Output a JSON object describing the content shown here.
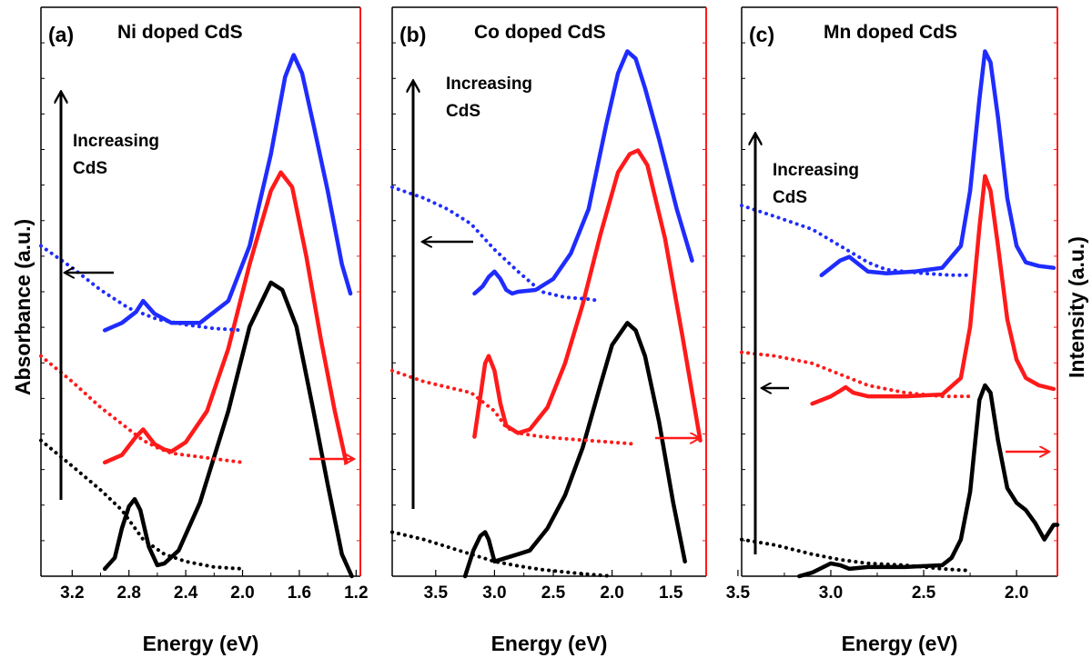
{
  "figure": {
    "ylabel_left": "Absorbance (a.u.)",
    "ylabel_right": "Intensity (a.u.)",
    "colors": {
      "blue": "#1f2cff",
      "red": "#ff1a1a",
      "black": "#000000"
    }
  },
  "chart_data": [
    {
      "type": "line",
      "panel_label": "(a)",
      "title": "Ni doped CdS",
      "xlabel": "Energy (eV)",
      "xlim": [
        3.42,
        1.17
      ],
      "xticks": [
        "3.2",
        "2.8",
        "2.4",
        "2.0",
        "1.6",
        "1.2"
      ],
      "annotation": [
        "Increasing",
        "CdS"
      ],
      "series": [
        {
          "color": "blue",
          "style": "solid",
          "x": [
            2.97,
            2.85,
            2.75,
            2.7,
            2.62,
            2.5,
            2.3,
            2.1,
            1.95,
            1.8,
            1.7,
            1.64,
            1.58,
            1.5,
            1.4,
            1.3,
            1.24
          ],
          "y": [
            6.7,
            6.9,
            7.2,
            7.5,
            7.15,
            6.9,
            6.9,
            7.5,
            9.0,
            11.5,
            13.6,
            14.2,
            13.7,
            12.3,
            10.5,
            8.5,
            7.7
          ]
        },
        {
          "color": "red",
          "style": "solid",
          "x": [
            2.97,
            2.85,
            2.75,
            2.7,
            2.62,
            2.55,
            2.5,
            2.4,
            2.25,
            2.1,
            1.95,
            1.8,
            1.73,
            1.65,
            1.55,
            1.45,
            1.35,
            1.27
          ],
          "y": [
            3.1,
            3.3,
            3.8,
            4.0,
            3.6,
            3.45,
            3.4,
            3.65,
            4.5,
            6.2,
            8.5,
            10.5,
            11.0,
            10.6,
            8.7,
            6.5,
            4.5,
            3.1
          ]
        },
        {
          "color": "black",
          "style": "solid",
          "x": [
            2.97,
            2.9,
            2.85,
            2.8,
            2.76,
            2.72,
            2.66,
            2.6,
            2.55,
            2.45,
            2.3,
            2.1,
            1.95,
            1.8,
            1.72,
            1.62,
            1.5,
            1.4,
            1.3,
            1.23
          ],
          "y": [
            0.2,
            0.5,
            1.3,
            1.9,
            2.1,
            1.8,
            0.8,
            0.3,
            0.35,
            0.7,
            2.0,
            4.5,
            6.8,
            8.0,
            7.8,
            6.8,
            4.5,
            2.5,
            0.6,
            0.0
          ]
        },
        {
          "color": "blue",
          "style": "dotted",
          "x": [
            3.42,
            3.2,
            3.0,
            2.8,
            2.6,
            2.4,
            2.2,
            2.0
          ],
          "y": [
            9.0,
            8.4,
            7.8,
            7.3,
            7.0,
            6.85,
            6.75,
            6.7
          ]
        },
        {
          "color": "red",
          "style": "dotted",
          "x": [
            3.42,
            3.2,
            3.0,
            2.8,
            2.7,
            2.6,
            2.5,
            2.4,
            2.2,
            2.0
          ],
          "y": [
            6.0,
            5.3,
            4.6,
            4.0,
            3.7,
            3.5,
            3.35,
            3.3,
            3.2,
            3.1
          ]
        },
        {
          "color": "black",
          "style": "dotted",
          "x": [
            3.42,
            3.2,
            3.0,
            2.85,
            2.7,
            2.55,
            2.4,
            2.2,
            2.0
          ],
          "y": [
            3.7,
            3.0,
            2.35,
            1.8,
            1.0,
            0.6,
            0.4,
            0.25,
            0.2
          ]
        }
      ]
    },
    {
      "type": "line",
      "panel_label": "(b)",
      "title": "Co doped CdS",
      "xlabel": "Energy (eV)",
      "xlim": [
        3.87,
        1.2
      ],
      "xticks": [
        "3.5",
        "3.0",
        "2.5",
        "2.0",
        "1.5"
      ],
      "annotation": [
        "Increasing",
        "CdS"
      ],
      "series": [
        {
          "color": "blue",
          "style": "solid",
          "x": [
            3.17,
            3.1,
            3.05,
            3.0,
            2.95,
            2.9,
            2.85,
            2.8,
            2.65,
            2.5,
            2.35,
            2.2,
            2.05,
            1.95,
            1.87,
            1.8,
            1.72,
            1.6,
            1.45,
            1.32
          ],
          "y": [
            7.7,
            7.9,
            8.15,
            8.3,
            8.1,
            7.8,
            7.7,
            7.75,
            7.8,
            8.1,
            8.8,
            10.0,
            12.3,
            13.7,
            14.3,
            14.1,
            13.3,
            11.9,
            10.0,
            8.6
          ]
        },
        {
          "color": "red",
          "style": "solid",
          "x": [
            3.17,
            3.12,
            3.08,
            3.05,
            3.0,
            2.95,
            2.9,
            2.8,
            2.7,
            2.55,
            2.4,
            2.25,
            2.1,
            1.95,
            1.85,
            1.78,
            1.7,
            1.55,
            1.4,
            1.25
          ],
          "y": [
            3.8,
            4.9,
            5.8,
            6.0,
            5.6,
            4.7,
            4.1,
            3.9,
            4.0,
            4.6,
            5.8,
            7.4,
            9.3,
            11.0,
            11.5,
            11.6,
            11.2,
            9.2,
            6.5,
            3.7
          ]
        },
        {
          "color": "black",
          "style": "solid",
          "x": [
            3.25,
            3.18,
            3.12,
            3.08,
            3.05,
            3.0,
            2.9,
            2.8,
            2.7,
            2.55,
            2.4,
            2.25,
            2.1,
            2.0,
            1.87,
            1.8,
            1.72,
            1.6,
            1.48,
            1.38
          ],
          "y": [
            0.0,
            0.7,
            1.1,
            1.2,
            1.0,
            0.4,
            0.5,
            0.6,
            0.7,
            1.3,
            2.2,
            3.5,
            5.2,
            6.3,
            6.9,
            6.7,
            6.0,
            4.2,
            2.0,
            0.4
          ]
        },
        {
          "color": "blue",
          "style": "dotted",
          "x": [
            3.87,
            3.6,
            3.4,
            3.2,
            3.0,
            2.8,
            2.6,
            2.4,
            2.2,
            2.1
          ],
          "y": [
            10.6,
            10.3,
            10.0,
            9.6,
            8.9,
            8.3,
            7.75,
            7.6,
            7.55,
            7.5
          ]
        },
        {
          "color": "red",
          "style": "dotted",
          "x": [
            3.87,
            3.6,
            3.4,
            3.2,
            3.0,
            2.9,
            2.8,
            2.6,
            2.3,
            2.0,
            1.8
          ],
          "y": [
            5.6,
            5.3,
            5.15,
            5.0,
            4.5,
            4.05,
            3.9,
            3.8,
            3.72,
            3.65,
            3.6
          ]
        },
        {
          "color": "black",
          "style": "dotted",
          "x": [
            3.87,
            3.6,
            3.4,
            3.2,
            3.0,
            2.8,
            2.6,
            2.3,
            2.0
          ],
          "y": [
            1.2,
            1.0,
            0.8,
            0.6,
            0.4,
            0.28,
            0.18,
            0.08,
            0.0
          ]
        }
      ]
    },
    {
      "type": "line",
      "panel_label": "(c)",
      "title": "Mn doped CdS",
      "xlabel": "Energy (eV)",
      "xlim": [
        3.48,
        1.78
      ],
      "xticks": [
        "3.5",
        "3.0",
        "2.5",
        "2.0"
      ],
      "annotation": [
        "Increasing",
        "CdS"
      ],
      "series": [
        {
          "color": "blue",
          "style": "solid",
          "x": [
            3.05,
            3.0,
            2.95,
            2.9,
            2.85,
            2.8,
            2.7,
            2.55,
            2.4,
            2.3,
            2.25,
            2.2,
            2.17,
            2.14,
            2.1,
            2.05,
            2.0,
            1.95,
            1.88,
            1.8
          ],
          "y": [
            8.2,
            8.4,
            8.6,
            8.7,
            8.5,
            8.3,
            8.25,
            8.3,
            8.4,
            9.0,
            10.5,
            13.0,
            14.3,
            14.0,
            12.5,
            10.3,
            9.0,
            8.55,
            8.45,
            8.4
          ]
        },
        {
          "color": "red",
          "style": "solid",
          "x": [
            3.1,
            3.0,
            2.95,
            2.92,
            2.88,
            2.8,
            2.6,
            2.4,
            2.3,
            2.25,
            2.2,
            2.17,
            2.14,
            2.1,
            2.05,
            2.0,
            1.95,
            1.88,
            1.8
          ],
          "y": [
            4.7,
            4.9,
            5.05,
            5.15,
            5.0,
            4.9,
            4.9,
            4.95,
            5.4,
            6.8,
            9.5,
            10.9,
            10.5,
            9.0,
            7.0,
            5.9,
            5.4,
            5.2,
            5.1
          ]
        },
        {
          "color": "black",
          "style": "solid",
          "x": [
            3.17,
            3.1,
            3.0,
            2.95,
            2.9,
            2.8,
            2.6,
            2.4,
            2.35,
            2.3,
            2.25,
            2.2,
            2.17,
            2.14,
            2.1,
            2.05,
            2.0,
            1.95,
            1.9,
            1.85,
            1.8,
            1.78
          ],
          "y": [
            0.0,
            0.1,
            0.35,
            0.3,
            0.2,
            0.25,
            0.25,
            0.3,
            0.5,
            1.0,
            2.3,
            4.8,
            5.2,
            5.0,
            3.7,
            2.4,
            2.0,
            1.8,
            1.45,
            1.0,
            1.4,
            1.4
          ]
        },
        {
          "color": "blue",
          "style": "dotted",
          "x": [
            3.48,
            3.3,
            3.1,
            2.95,
            2.8,
            2.7,
            2.5,
            2.35,
            2.25
          ],
          "y": [
            10.1,
            9.8,
            9.45,
            9.0,
            8.55,
            8.35,
            8.25,
            8.2,
            8.2
          ]
        },
        {
          "color": "red",
          "style": "dotted",
          "x": [
            3.48,
            3.3,
            3.1,
            2.95,
            2.8,
            2.6,
            2.5,
            2.4,
            2.25
          ],
          "y": [
            6.1,
            6.0,
            5.8,
            5.5,
            5.2,
            5.0,
            4.95,
            4.9,
            4.9
          ]
        },
        {
          "color": "black",
          "style": "dotted",
          "x": [
            3.48,
            3.3,
            3.1,
            2.95,
            2.8,
            2.6,
            2.4,
            2.25
          ],
          "y": [
            1.0,
            0.85,
            0.6,
            0.45,
            0.35,
            0.3,
            0.2,
            0.15
          ]
        }
      ]
    }
  ]
}
